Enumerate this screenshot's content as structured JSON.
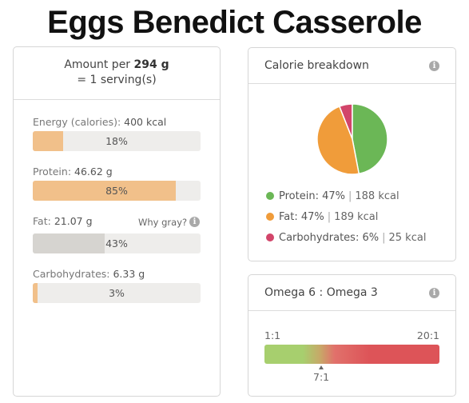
{
  "title": "Eggs Benedict Casserole",
  "amount": {
    "prefix": "Amount per",
    "weight": "294 g",
    "serving": "= 1 serving(s)"
  },
  "nutrients": [
    {
      "name": "Energy (calories):",
      "value": "400 kcal",
      "percent_label": "18%",
      "percent": 18,
      "color": "#f1c08a"
    },
    {
      "name": "Protein:",
      "value": "46.62 g",
      "percent_label": "85%",
      "percent": 85,
      "color": "#f1c08a"
    },
    {
      "name": "Fat:",
      "value": "21.07 g",
      "percent_label": "43%",
      "percent": 43,
      "color": "#d6d4d0"
    },
    {
      "name": "Carbohydrates:",
      "value": "6.33 g",
      "percent_label": "3%",
      "percent": 3,
      "color": "#f1c08a"
    }
  ],
  "why_gray": "Why gray?",
  "info_glyph": "i",
  "calorie_panel": {
    "title": "Calorie breakdown",
    "legend": [
      {
        "name": "Protein:",
        "pct": "47%",
        "kcal": "188 kcal",
        "color": "#6bb756"
      },
      {
        "name": "Fat:",
        "pct": "47%",
        "kcal": "189 kcal",
        "color": "#f09c3a"
      },
      {
        "name": "Carbohydrates:",
        "pct": "6%",
        "kcal": "25 kcal",
        "color": "#d2456a"
      }
    ]
  },
  "chart_data": {
    "type": "pie",
    "title": "",
    "categories": [
      "Protein",
      "Fat",
      "Carbohydrates"
    ],
    "values": [
      47,
      47,
      6
    ],
    "colors": [
      "#6bb756",
      "#f09c3a",
      "#d2456a"
    ]
  },
  "omega_panel": {
    "title": "Omega 6 : Omega 3",
    "min_label": "1:1",
    "max_label": "20:1",
    "value_label": "7:1",
    "value": 7
  }
}
